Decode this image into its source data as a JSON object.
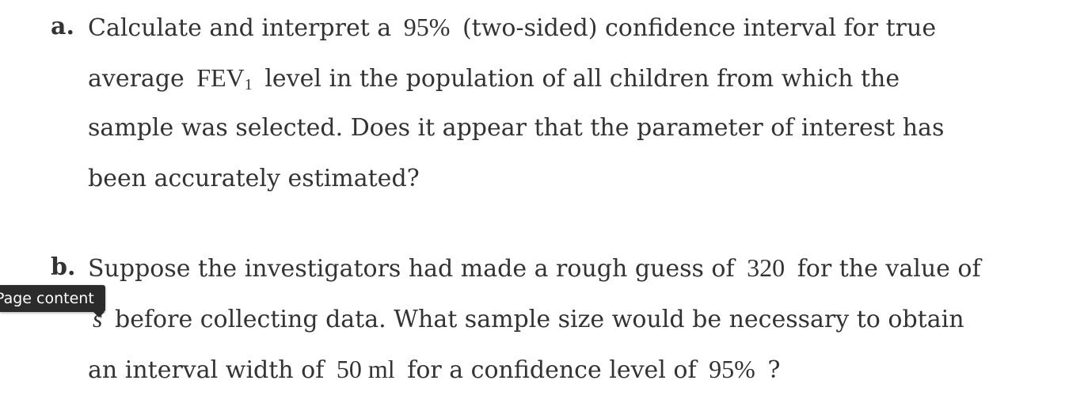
{
  "part_a": {
    "marker": "a.",
    "line1": {
      "t1": "Calculate and interpret a",
      "m1": "95%",
      "t2": "(two-sided) confidence interval for true"
    },
    "line2": {
      "t1": "average",
      "m1": "FEV",
      "sub": "1",
      "t2": "level in the population of all children from which the"
    },
    "line3": "sample was selected. Does it appear that the parameter of interest has",
    "line4": "been accurately estimated?"
  },
  "part_b": {
    "marker": "b.",
    "line1": {
      "t1": "Suppose the investigators had made a rough guess of",
      "m1": "320",
      "t2": "for the value of"
    },
    "line2": {
      "m1": "s",
      "t1": "before collecting data. What sample size would be necessary to obtain"
    },
    "line3": {
      "t1": "an interval width of",
      "m1": "50 ml",
      "t2": "for a confidence level of",
      "m2": "95%",
      "t3": "?"
    }
  },
  "tooltip": {
    "label": "Page content"
  }
}
